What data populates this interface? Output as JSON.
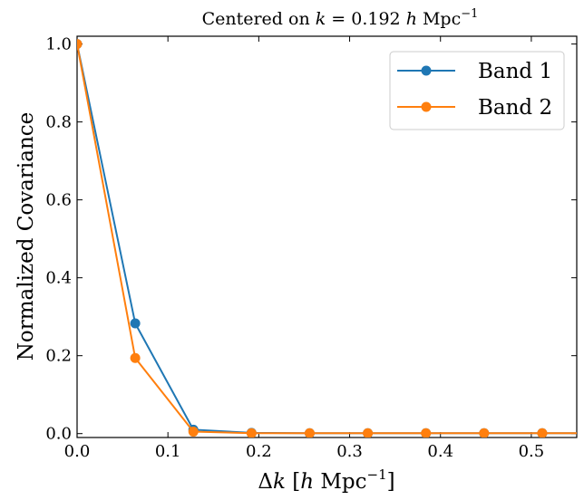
{
  "chart_data": {
    "type": "line",
    "title": "Centered on k = 0.192 h Mpc⁻¹",
    "title_parts": {
      "prefix": "Centered on ",
      "var": "k",
      "eq": " = 0.192 ",
      "h": "h",
      "unit": " Mpc",
      "exp": "−1"
    },
    "xlabel": "Δk [h Mpc⁻¹]",
    "xlabel_parts": {
      "delta": "Δ",
      "var": "k",
      "open": " [",
      "h": "h",
      "unit": " Mpc",
      "exp": "−1",
      "close": "]"
    },
    "ylabel": "Normalized Covariance",
    "xlim": [
      0.0,
      0.55
    ],
    "ylim": [
      -0.01,
      1.02
    ],
    "xticks": [
      0.0,
      0.1,
      0.2,
      0.3,
      0.4,
      0.5
    ],
    "xtick_labels": [
      "0.0",
      "0.1",
      "0.2",
      "0.3",
      "0.4",
      "0.5"
    ],
    "yticks": [
      0.0,
      0.2,
      0.4,
      0.6,
      0.8,
      1.0
    ],
    "ytick_labels": [
      "0.0",
      "0.2",
      "0.4",
      "0.6",
      "0.8",
      "1.0"
    ],
    "grid": false,
    "legend_position": "top-right",
    "x": [
      0.0,
      0.064,
      0.128,
      0.192,
      0.256,
      0.32,
      0.384,
      0.448,
      0.512,
      0.576
    ],
    "series": [
      {
        "name": "Band 1",
        "color": "#1f77b4",
        "values": [
          1.0,
          0.283,
          0.01,
          0.002,
          0.001,
          0.001,
          0.001,
          0.001,
          0.001,
          0.001
        ]
      },
      {
        "name": "Band 2",
        "color": "#ff7f0e",
        "values": [
          1.0,
          0.194,
          0.005,
          0.001,
          0.001,
          0.001,
          0.001,
          0.001,
          0.001,
          0.001
        ]
      }
    ]
  }
}
